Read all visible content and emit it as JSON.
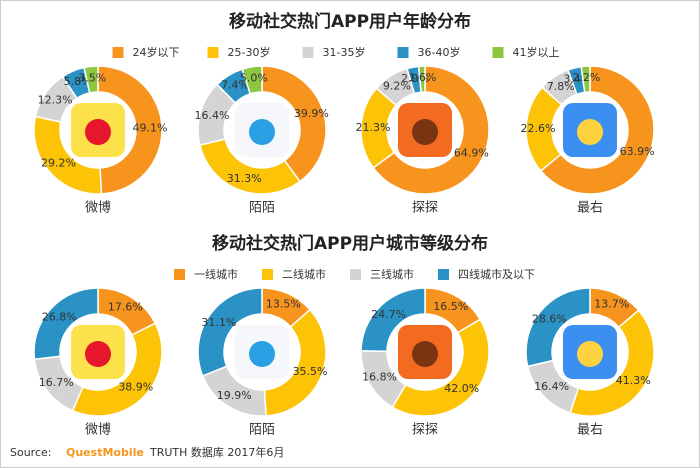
{
  "chart_data": [
    {
      "type": "pie",
      "title": "移动社交热门APP用户年龄分布",
      "categories": [
        "24岁以下",
        "25-30岁",
        "31-35岁",
        "36-40岁",
        "41岁以上"
      ],
      "colors": [
        "#f7941d",
        "#fcc307",
        "#d4d4d4",
        "#2a92c4",
        "#8dc63f"
      ],
      "series": [
        {
          "name": "微博",
          "values": [
            49.1,
            29.2,
            12.3,
            5.8,
            3.5
          ],
          "value_labels": [
            "49.1%",
            "29.2%",
            "12.3%",
            "5.8%",
            "3.5%"
          ]
        },
        {
          "name": "陌陌",
          "values": [
            39.9,
            31.3,
            16.4,
            7.4,
            5.0
          ],
          "value_labels": [
            "39.9%",
            "31.3%",
            "16.4%",
            "7.4%",
            "5.0%"
          ]
        },
        {
          "name": "探探",
          "values": [
            64.9,
            21.3,
            9.2,
            2.9,
            1.6
          ],
          "value_labels": [
            "64.9%",
            "21.3%",
            "9.2%",
            "2.9%",
            "1.6%"
          ]
        },
        {
          "name": "最右",
          "values": [
            63.9,
            22.6,
            7.8,
            3.4,
            2.2
          ],
          "value_labels": [
            "63.9%",
            "22.6%",
            "7.8%",
            "3.4%",
            "2.2%"
          ]
        }
      ]
    },
    {
      "type": "pie",
      "title": "移动社交热门APP用户城市等级分布",
      "categories": [
        "一线城市",
        "二线城市",
        "三线城市",
        "四线城市及以下"
      ],
      "colors": [
        "#f7941d",
        "#fcc307",
        "#d4d4d4",
        "#2a92c4"
      ],
      "series": [
        {
          "name": "微博",
          "values": [
            17.6,
            38.9,
            16.7,
            26.8
          ],
          "value_labels": [
            "17.6%",
            "38.9%",
            "16.7%",
            "26.8%"
          ]
        },
        {
          "name": "陌陌",
          "values": [
            13.5,
            35.5,
            19.9,
            31.1
          ],
          "value_labels": [
            "13.5%",
            "35.5%",
            "19.9%",
            "31.1%"
          ]
        },
        {
          "name": "探探",
          "values": [
            16.5,
            42.0,
            16.8,
            24.7
          ],
          "value_labels": [
            "16.5%",
            "42.0%",
            "16.8%",
            "24.7%"
          ]
        },
        {
          "name": "最右",
          "values": [
            13.7,
            41.3,
            16.4,
            28.6
          ],
          "value_labels": [
            "13.7%",
            "41.3%",
            "16.4%",
            "28.6%"
          ]
        }
      ]
    }
  ],
  "source": {
    "label": "Source:",
    "brand": "QuestMobile",
    "rest": "TRUTH 数据库 2017年6月"
  }
}
